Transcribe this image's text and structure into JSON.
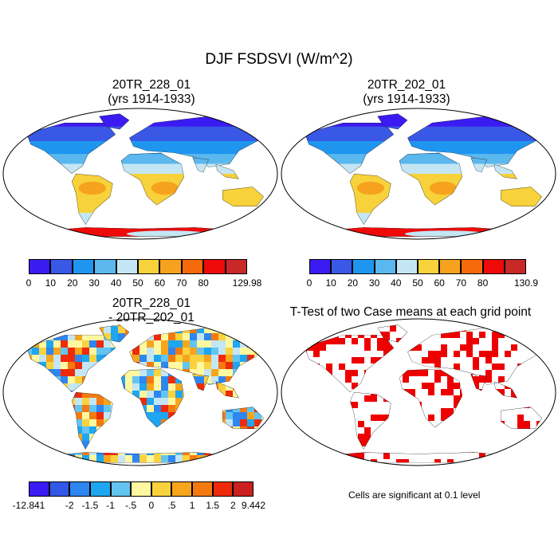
{
  "title": "DJF FSDSVI (W/m^2)",
  "panels": [
    {
      "id": "p1",
      "title_line1": "20TR_228_01",
      "title_line2": "(yrs 1914-1933)"
    },
    {
      "id": "p2",
      "title_line1": "20TR_202_01",
      "title_line2": "(yrs 1914-1933)"
    },
    {
      "id": "p3",
      "title_line1": "20TR_228_01",
      "title_line2": "- 20TR_202_01"
    },
    {
      "id": "p4",
      "title_line1": "T-Test of two Case means at each grid point",
      "title_line2": ""
    }
  ],
  "colorbars": [
    {
      "id": "cb1",
      "colors": [
        "#3a1cf2",
        "#3a58e6",
        "#1e96f0",
        "#5ab8ee",
        "#c4e6f4",
        "#f7d23a",
        "#f7a21e",
        "#f76a0c",
        "#ef0a0a",
        "#c82828"
      ],
      "labels": [
        "0",
        "10",
        "20",
        "30",
        "40",
        "50",
        "60",
        "70",
        "80",
        "129.98"
      ]
    },
    {
      "id": "cb2",
      "colors": [
        "#3a1cf2",
        "#3a58e6",
        "#1e96f0",
        "#5ab8ee",
        "#c4e6f4",
        "#f7d23a",
        "#f7a21e",
        "#f76a0c",
        "#ef0a0a",
        "#c82828"
      ],
      "labels": [
        "0",
        "10",
        "20",
        "30",
        "40",
        "50",
        "60",
        "70",
        "80",
        "130.9"
      ]
    },
    {
      "id": "cb3",
      "colors": [
        "#3a1cf2",
        "#3258e8",
        "#2e86f0",
        "#1ea6f0",
        "#64c4f0",
        "#fff8a0",
        "#f9d23e",
        "#f7a51c",
        "#f47a10",
        "#ee2a0a",
        "#cc2020"
      ],
      "labels": [
        "-12.841",
        "-2",
        "-1.5",
        "-1",
        "-.5",
        "0",
        ".5",
        "1",
        "1.5",
        "2",
        "9.442"
      ]
    }
  ],
  "significance_note": "Cells are significant at 0.1 level"
}
